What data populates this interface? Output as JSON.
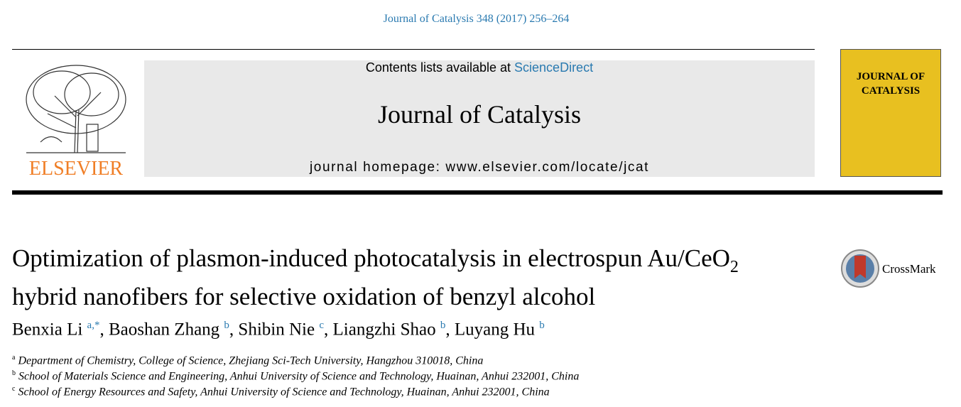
{
  "header": {
    "citation": "Journal of Catalysis 348 (2017) 256–264",
    "publisher": "ELSEVIER",
    "contents_prefix": "Contents lists available at",
    "contents_link": "ScienceDirect",
    "journal": "Journal of Catalysis",
    "homepage": "journal homepage: www.elsevier.com/locate/jcat",
    "cover": [
      "JOURNAL OF",
      "CATALYSIS"
    ]
  },
  "article": {
    "title": {
      "before": "Optimization of plasmon-induced photocatalysis in electrospun Au/CeO",
      "subscript": "2",
      "after": "hybrid nanofibers for selective oxidation of benzyl alcohol"
    },
    "crossmark": "CrossMark",
    "separator": ",",
    "authors": [
      {
        "name": "Benxia Li",
        "sup": "a,*"
      },
      {
        "name": "Baoshan Zhang",
        "sup": "b"
      },
      {
        "name": "Shibin Nie",
        "sup": "c"
      },
      {
        "name": "Liangzhi Shao",
        "sup": "b"
      },
      {
        "name": "Luyang Hu",
        "sup": "b"
      }
    ],
    "affiliations": [
      {
        "label": "a",
        "text": "Department of Chemistry, College of Science, Zhejiang Sci-Tech University, Hangzhou 310018, China"
      },
      {
        "label": "b",
        "text": "School of Materials Science and Engineering, Anhui University of Science and Technology, Huainan, Anhui 232001, China"
      },
      {
        "label": "c",
        "text": "School of Energy Resources and Safety, Anhui University of Science and Technology, Huainan, Anhui 232001, China"
      }
    ]
  }
}
